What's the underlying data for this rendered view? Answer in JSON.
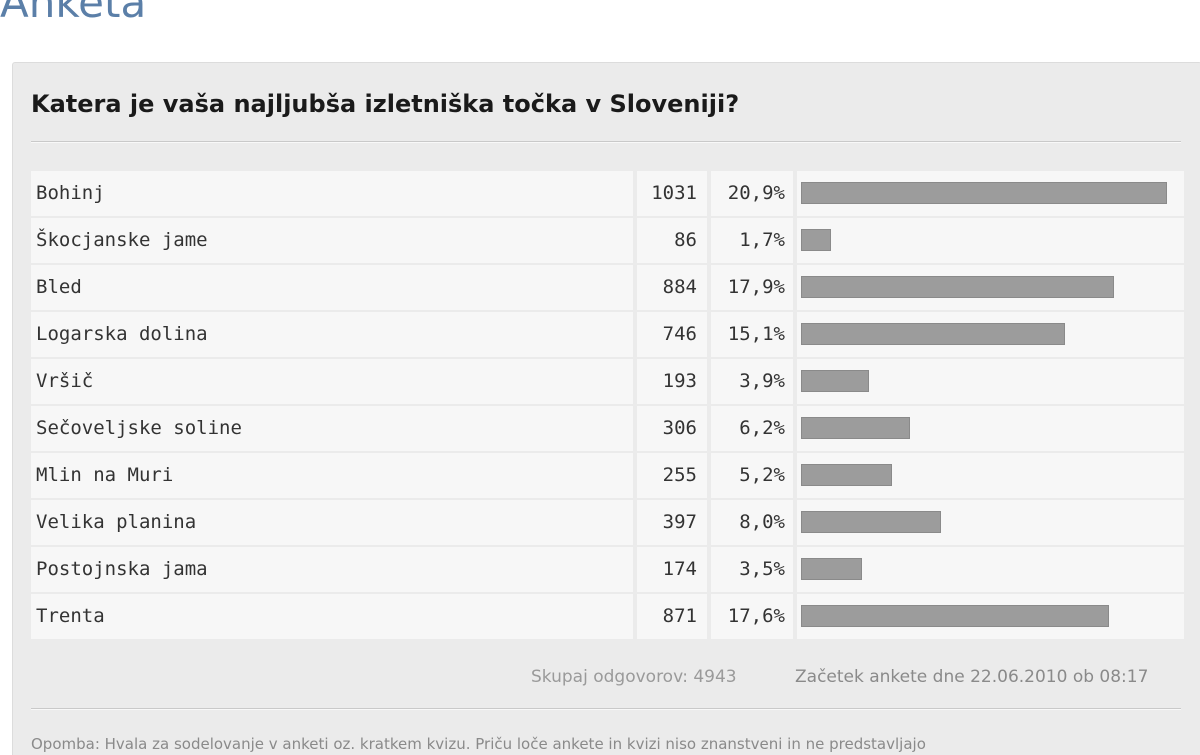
{
  "page": {
    "heading": "Anketa"
  },
  "poll": {
    "question": "Katera je vaša najljubša izletniška točka v Sloveniji?",
    "total_label": "Skupaj odgovorov: 4943",
    "start_label": "Začetek ankete dne 22.06.2010 ob 08:17",
    "note": "Opomba: Hvala za sodelovanje v anketi oz. kratkem kvizu. Priču loče ankete in kvizi niso znanstveni in ne predstavljajo"
  },
  "colors": {
    "heading": "#5b7fa8",
    "panel": "#ebebeb",
    "bar": "#9c9c9c"
  },
  "chart_data": {
    "type": "bar",
    "orientation": "horizontal",
    "title": "Katera je vaša najljubša izletniška točka v Sloveniji?",
    "categories": [
      "Bohinj",
      "Škocjanske jame",
      "Bled",
      "Logarska dolina",
      "Vršič",
      "Sečoveljske soline",
      "Mlin na Muri",
      "Velika planina",
      "Postojnska jama",
      "Trenta"
    ],
    "values": [
      1031,
      86,
      884,
      746,
      193,
      306,
      255,
      397,
      174,
      871
    ],
    "percent_labels": [
      "20,9%",
      "1,7%",
      "17,9%",
      "15,1%",
      "3,9%",
      "6,2%",
      "5,2%",
      "8,0%",
      "3,5%",
      "17,6%"
    ],
    "percentages": [
      20.9,
      1.7,
      17.9,
      15.1,
      3.9,
      6.2,
      5.2,
      8.0,
      3.5,
      17.6
    ],
    "total": 4943
  }
}
